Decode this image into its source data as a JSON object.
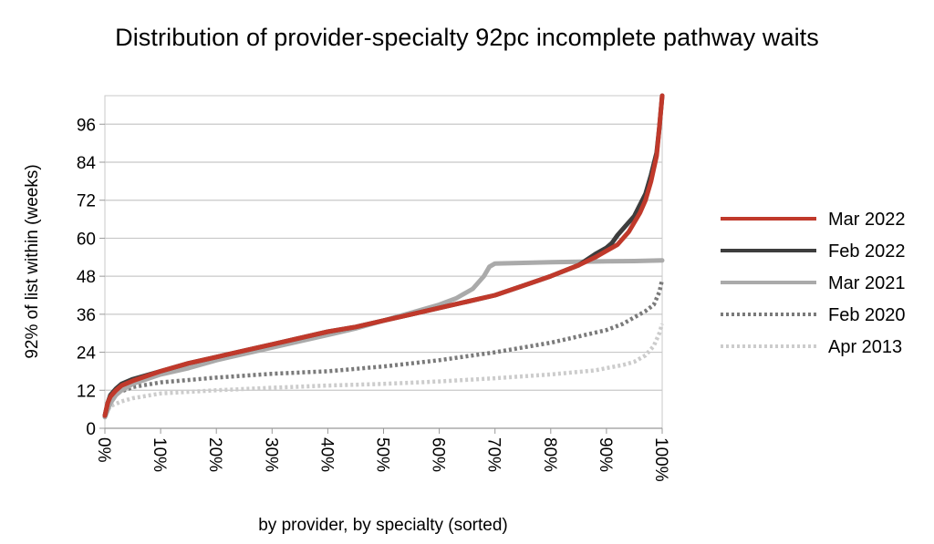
{
  "chart_data": {
    "type": "line",
    "title": "Distribution of provider-specialty 92pc incomplete pathway waits",
    "xlabel": "by provider, by specialty (sorted)",
    "ylabel": "92% of list within (weeks)",
    "xlim": [
      0,
      100
    ],
    "ylim": [
      0,
      105
    ],
    "y_ticks": [
      0,
      12,
      24,
      36,
      48,
      60,
      72,
      84,
      96
    ],
    "x_ticks": [
      "0%",
      "10%",
      "20%",
      "30%",
      "40%",
      "50%",
      "60%",
      "70%",
      "80%",
      "90%",
      "100%"
    ],
    "x_tick_values": [
      0,
      10,
      20,
      30,
      40,
      50,
      60,
      70,
      80,
      90,
      100
    ],
    "grid": "horizontal",
    "legend_position": "right",
    "series": [
      {
        "name": "Mar 2022",
        "color": "#c0392b",
        "style": "solid",
        "points": [
          [
            0,
            4
          ],
          [
            0.5,
            8
          ],
          [
            1,
            10
          ],
          [
            2,
            12
          ],
          [
            3,
            13.5
          ],
          [
            5,
            15
          ],
          [
            10,
            18
          ],
          [
            15,
            20.5
          ],
          [
            20,
            22.5
          ],
          [
            25,
            24.5
          ],
          [
            30,
            26.5
          ],
          [
            35,
            28.5
          ],
          [
            40,
            30.5
          ],
          [
            45,
            32
          ],
          [
            50,
            34
          ],
          [
            55,
            36
          ],
          [
            60,
            38
          ],
          [
            65,
            40
          ],
          [
            70,
            42
          ],
          [
            75,
            45
          ],
          [
            80,
            48
          ],
          [
            85,
            51.5
          ],
          [
            88,
            54
          ],
          [
            90,
            56
          ],
          [
            92,
            58
          ],
          [
            94,
            62
          ],
          [
            96,
            68
          ],
          [
            97,
            72
          ],
          [
            98,
            78
          ],
          [
            99,
            86
          ],
          [
            99.5,
            95
          ],
          [
            100,
            105
          ]
        ]
      },
      {
        "name": "Feb 2022",
        "color": "#3d3d3d",
        "style": "solid",
        "points": [
          [
            0,
            4
          ],
          [
            0.5,
            8
          ],
          [
            1,
            10.5
          ],
          [
            2,
            12.5
          ],
          [
            3,
            14
          ],
          [
            5,
            15.5
          ],
          [
            10,
            18
          ],
          [
            15,
            20.5
          ],
          [
            20,
            22.5
          ],
          [
            25,
            24.5
          ],
          [
            30,
            26.5
          ],
          [
            35,
            28.5
          ],
          [
            40,
            30.5
          ],
          [
            45,
            32
          ],
          [
            50,
            34
          ],
          [
            55,
            36
          ],
          [
            60,
            38
          ],
          [
            65,
            40
          ],
          [
            70,
            42
          ],
          [
            75,
            45
          ],
          [
            80,
            48
          ],
          [
            85,
            51.5
          ],
          [
            88,
            55
          ],
          [
            90,
            57
          ],
          [
            91,
            58.5
          ],
          [
            92,
            61
          ],
          [
            93,
            63
          ],
          [
            95,
            67
          ],
          [
            97,
            74
          ],
          [
            98,
            80
          ],
          [
            99,
            87
          ],
          [
            99.5,
            95
          ],
          [
            100,
            105
          ]
        ]
      },
      {
        "name": "Mar 2021",
        "color": "#aaaaaa",
        "style": "solid",
        "points": [
          [
            0,
            3.5
          ],
          [
            1,
            8
          ],
          [
            2,
            10.5
          ],
          [
            3,
            12
          ],
          [
            5,
            14
          ],
          [
            10,
            17
          ],
          [
            15,
            19
          ],
          [
            20,
            21.5
          ],
          [
            25,
            23.5
          ],
          [
            30,
            25.5
          ],
          [
            35,
            27.5
          ],
          [
            40,
            29.5
          ],
          [
            45,
            31.5
          ],
          [
            50,
            34
          ],
          [
            55,
            36.5
          ],
          [
            60,
            39
          ],
          [
            63,
            41
          ],
          [
            66,
            44
          ],
          [
            68,
            48
          ],
          [
            69,
            51
          ],
          [
            70,
            52
          ],
          [
            75,
            52.2
          ],
          [
            80,
            52.4
          ],
          [
            85,
            52.6
          ],
          [
            90,
            52.7
          ],
          [
            95,
            52.8
          ],
          [
            100,
            53
          ]
        ]
      },
      {
        "name": "Feb 2020",
        "color": "#7a7a7a",
        "style": "dotted",
        "points": [
          [
            0,
            4
          ],
          [
            0.5,
            6
          ],
          [
            1,
            9
          ],
          [
            2,
            11
          ],
          [
            5,
            13
          ],
          [
            10,
            14.5
          ],
          [
            20,
            16
          ],
          [
            30,
            17.2
          ],
          [
            40,
            18
          ],
          [
            50,
            19.5
          ],
          [
            60,
            21.5
          ],
          [
            70,
            24
          ],
          [
            80,
            27
          ],
          [
            85,
            29
          ],
          [
            90,
            31
          ],
          [
            93,
            33
          ],
          [
            95,
            35
          ],
          [
            97,
            37
          ],
          [
            98.5,
            39
          ],
          [
            99.5,
            43
          ],
          [
            100,
            47
          ]
        ]
      },
      {
        "name": "Apr 2013",
        "color": "#cccccc",
        "style": "dotted",
        "points": [
          [
            0,
            4.5
          ],
          [
            1,
            7
          ],
          [
            3,
            8.5
          ],
          [
            5,
            9.5
          ],
          [
            10,
            11
          ],
          [
            20,
            12
          ],
          [
            30,
            12.8
          ],
          [
            40,
            13.5
          ],
          [
            50,
            14
          ],
          [
            60,
            14.8
          ],
          [
            70,
            15.8
          ],
          [
            80,
            17
          ],
          [
            85,
            17.8
          ],
          [
            88,
            18.3
          ],
          [
            90,
            19
          ],
          [
            93,
            20
          ],
          [
            95,
            21
          ],
          [
            97,
            23
          ],
          [
            98.5,
            26
          ],
          [
            99.5,
            30
          ],
          [
            100,
            33
          ]
        ]
      }
    ]
  }
}
